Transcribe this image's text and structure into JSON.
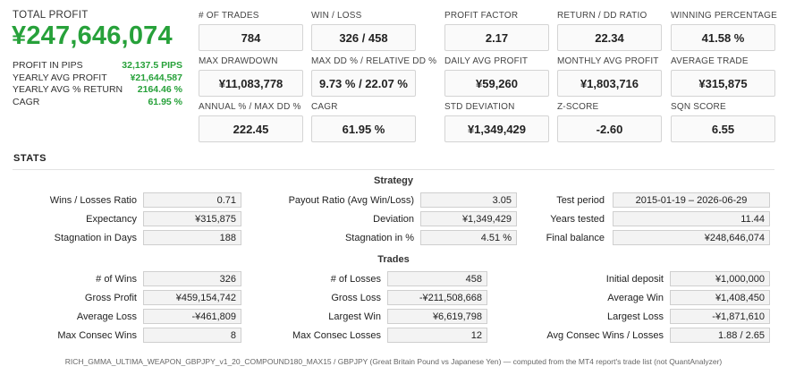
{
  "summary": {
    "total_profit_label": "TOTAL PROFIT",
    "total_profit_value": "¥247,646,074",
    "rows": [
      {
        "label": "PROFIT IN PIPS",
        "value": "32,137.5 PIPS"
      },
      {
        "label": "YEARLY AVG PROFIT",
        "value": "¥21,644,587"
      },
      {
        "label": "YEARLY AVG % RETURN",
        "value": "2164.46 %"
      },
      {
        "label": "CAGR",
        "value": "61.95 %"
      }
    ]
  },
  "kpis": [
    {
      "label": "# OF TRADES",
      "value": "784"
    },
    {
      "label": "WIN / LOSS",
      "value": "326 / 458"
    },
    {
      "label": "PROFIT FACTOR",
      "value": "2.17"
    },
    {
      "label": "RETURN / DD RATIO",
      "value": "22.34"
    },
    {
      "label": "WINNING PERCENTAGE",
      "value": "41.58 %"
    },
    {
      "label": "MAX DRAWDOWN",
      "value": "¥11,083,778"
    },
    {
      "label": "MAX DD % / RELATIVE DD %",
      "value": "9.73 % / 22.07 %"
    },
    {
      "label": "DAILY AVG PROFIT",
      "value": "¥59,260"
    },
    {
      "label": "MONTHLY AVG PROFIT",
      "value": "¥1,803,716"
    },
    {
      "label": "AVERAGE TRADE",
      "value": "¥315,875"
    },
    {
      "label": "ANNUAL % / MAX DD %",
      "value": "222.45"
    },
    {
      "label": "CAGR",
      "value": "61.95 %"
    },
    {
      "label": "STD DEVIATION",
      "value": "¥1,349,429"
    },
    {
      "label": "Z-SCORE",
      "value": "-2.60"
    },
    {
      "label": "SQN SCORE",
      "value": "6.55"
    }
  ],
  "stats": {
    "title": "STATS",
    "strategy_title": "Strategy",
    "strategy": [
      {
        "label": "Wins / Losses Ratio",
        "value": "0.71"
      },
      {
        "label": "Payout Ratio (Avg Win/Loss)",
        "value": "3.05"
      },
      {
        "label": "Test period",
        "value": "2015-01-19 – 2026-06-29"
      },
      {
        "label": "Expectancy",
        "value": "¥315,875"
      },
      {
        "label": "Deviation",
        "value": "¥1,349,429"
      },
      {
        "label": "Years tested",
        "value": "11.44"
      },
      {
        "label": "Stagnation in Days",
        "value": "188"
      },
      {
        "label": "Stagnation in %",
        "value": "4.51 %"
      },
      {
        "label": "Final balance",
        "value": "¥248,646,074"
      }
    ],
    "trades_title": "Trades",
    "trades": [
      {
        "label": "# of Wins",
        "value": "326"
      },
      {
        "label": "# of Losses",
        "value": "458"
      },
      {
        "label": "Initial deposit",
        "value": "¥1,000,000"
      },
      {
        "label": "Gross Profit",
        "value": "¥459,154,742"
      },
      {
        "label": "Gross Loss",
        "value": "-¥211,508,668"
      },
      {
        "label": "Average Win",
        "value": "¥1,408,450"
      },
      {
        "label": "Average Loss",
        "value": "-¥461,809"
      },
      {
        "label": "Largest Win",
        "value": "¥6,619,798"
      },
      {
        "label": "Largest Loss",
        "value": "-¥1,871,610"
      },
      {
        "label": "Max Consec Wins",
        "value": "8"
      },
      {
        "label": "Max Consec Losses",
        "value": "12"
      },
      {
        "label": "Avg Consec Wins / Losses",
        "value": "1.88 / 2.65"
      }
    ]
  },
  "footer": "RICH_GMMA_ULTIMA_WEAPON_GBPJPY_v1_20_COMPOUND180_MAX15 / GBPJPY (Great Britain Pound vs Japanese Yen) — computed from the MT4 report's trade list (not QuantAnalyzer)",
  "colors": {
    "profit_green": "#27a13a"
  }
}
